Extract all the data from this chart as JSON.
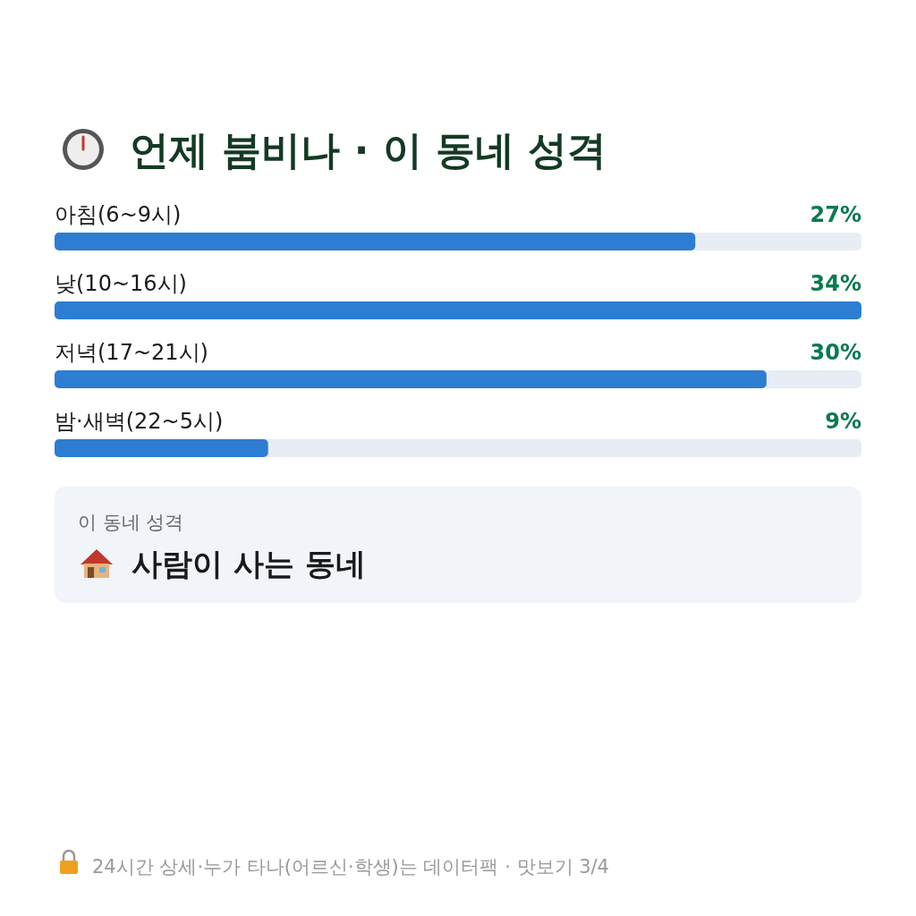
{
  "chart_data": {
    "type": "bar",
    "orientation": "horizontal",
    "title": "언제 붐비나 · 이 동네 성격",
    "categories": [
      "아침(6~9시)",
      "낮(10~16시)",
      "저녁(17~21시)",
      "밤·새벽(22~5시)"
    ],
    "values": [
      27,
      34,
      30,
      9
    ],
    "color": "#2d7dd2",
    "value_labels": [
      "27%",
      "34%",
      "30%",
      "9%"
    ],
    "annotations": [
      "이 동네 성격",
      "사람이 사는 동네",
      "24시간 상세·누가 타나(어르신·학생)는 데이터팩 · 맛보기 3/4"
    ]
  }
}
